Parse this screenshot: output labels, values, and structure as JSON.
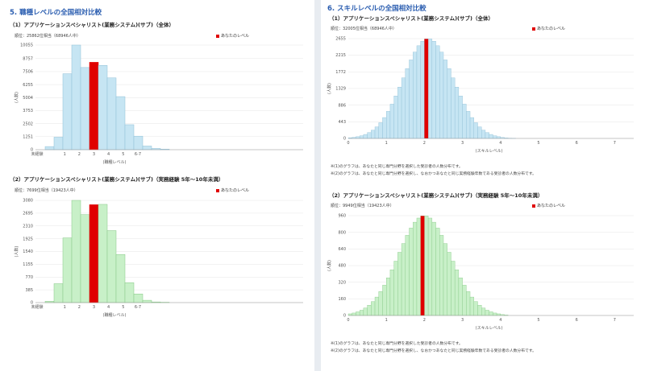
{
  "left": {
    "section_title": "5. 職種レベルの全国相対比較",
    "legend_label": "あなたのレベル",
    "charts": [
      {
        "title": "（1）アプリケーションスペシャリスト(業務システム)(サブ)（全体）",
        "rank_text": "順位：25862位相当（68946人中）",
        "chart_data": {
          "type": "bar",
          "categories": [
            "未経験",
            "",
            "1",
            "",
            "2",
            "",
            "3",
            "",
            "4",
            "",
            "5",
            "",
            "6-7",
            ""
          ],
          "values": [
            300,
            1200,
            7300,
            10055,
            7900,
            8400,
            8100,
            6900,
            5100,
            2400,
            1300,
            350,
            120,
            50
          ],
          "highlight_index": 5,
          "fill": "#c6e5f3",
          "stroke": "#8fbfd6",
          "highlight_color": "#e00000",
          "yticks": [
            0,
            1251,
            2502,
            3753,
            5004,
            6255,
            7506,
            8757,
            10055
          ],
          "ylim": [
            0,
            10055
          ],
          "xlabel": "(職種レベル)",
          "ylabel": "(人数)"
        }
      },
      {
        "title": "（2）アプリケーションスペシャリスト(業務システム)(サブ)（実務経験 5年〜10年未満）",
        "rank_text": "順位：7699位相当（19423人中）",
        "chart_data": {
          "type": "bar",
          "categories": [
            "未経験",
            "",
            "1",
            "",
            "2",
            "",
            "3",
            "",
            "4",
            "",
            "5",
            "",
            "6-7",
            ""
          ],
          "values": [
            40,
            570,
            1950,
            3080,
            2650,
            2950,
            2960,
            2170,
            1450,
            600,
            260,
            70,
            20,
            10
          ],
          "highlight_index": 5,
          "fill": "#c8f0c8",
          "stroke": "#88c888",
          "highlight_color": "#e00000",
          "yticks": [
            0,
            385,
            770,
            1155,
            1540,
            1925,
            2310,
            2695,
            3080
          ],
          "ylim": [
            0,
            3080
          ],
          "xlabel": "(職種レベル)",
          "ylabel": "(人数)"
        }
      }
    ]
  },
  "right": {
    "section_title": "6. スキルレベルの全国相対比較",
    "legend_label": "あなたのレベル",
    "charts": [
      {
        "title": "（1）アプリケーションスペシャリスト(業務システム)(サブ)（全体）",
        "rank_text": "順位：32005位相当（68946人中）",
        "notes": [
          "※(1)のグラフは、あなたと同じ専門分野を選択した受診者の人数分布です。",
          "※(2)のグラフは、あなたと同じ専門分野を選択し、なおかつあなたと同じ実務経験年数である受診者の人数分布です。"
        ],
        "chart_data": {
          "type": "bar",
          "xticks": [
            "0",
            "1",
            "2",
            "3",
            "4",
            "5",
            "6",
            "7"
          ],
          "x_range": [
            0,
            7.5
          ],
          "bin_width": 0.1,
          "peak": 2.1,
          "sigma": 0.65,
          "peak_value": 2655,
          "cutoff": 4.0,
          "highlight_x": 2.0,
          "fill": "#c6e5f3",
          "stroke": "#8fbfd6",
          "highlight_color": "#e00000",
          "yticks": [
            0,
            443,
            886,
            1329,
            1772,
            2215,
            2655
          ],
          "ylim": [
            0,
            2655
          ],
          "xlabel": "(スキルレベル)",
          "ylabel": "(人数)"
        }
      },
      {
        "title": "（2）アプリケーションスペシャリスト(業務システム)(サブ)（実務経験 5年〜10年未満）",
        "rank_text": "順位：9949位相当（19423人中）",
        "notes": [
          "※(1)のグラフは、あなたと同じ専門分野を選択した受診者の人数分布です。",
          "※(2)のグラフは、あなたと同じ専門分野を選択し、なおかつあなたと同じ実務経験年数である受診者の人数分布です。"
        ],
        "chart_data": {
          "type": "bar",
          "xticks": [
            "0",
            "1",
            "2",
            "3",
            "4",
            "5",
            "6",
            "7"
          ],
          "x_range": [
            0,
            7.5
          ],
          "bin_width": 0.1,
          "peak": 2.0,
          "sigma": 0.68,
          "peak_value": 960,
          "cutoff": 4.0,
          "highlight_x": 1.9,
          "fill": "#c8f0c8",
          "stroke": "#88c888",
          "highlight_color": "#e00000",
          "yticks": [
            0,
            160,
            320,
            480,
            640,
            800,
            960
          ],
          "ylim": [
            0,
            960
          ],
          "xlabel": "(スキルレベル)",
          "ylabel": "(人数)"
        }
      }
    ]
  }
}
